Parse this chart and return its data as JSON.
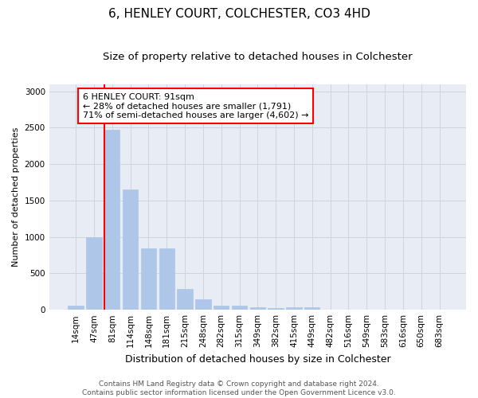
{
  "title": "6, HENLEY COURT, COLCHESTER, CO3 4HD",
  "subtitle": "Size of property relative to detached houses in Colchester",
  "xlabel": "Distribution of detached houses by size in Colchester",
  "ylabel": "Number of detached properties",
  "categories": [
    "14sqm",
    "47sqm",
    "81sqm",
    "114sqm",
    "148sqm",
    "181sqm",
    "215sqm",
    "248sqm",
    "282sqm",
    "315sqm",
    "349sqm",
    "382sqm",
    "415sqm",
    "449sqm",
    "482sqm",
    "516sqm",
    "549sqm",
    "583sqm",
    "616sqm",
    "650sqm",
    "683sqm"
  ],
  "values": [
    55,
    1000,
    2470,
    1650,
    840,
    840,
    290,
    140,
    55,
    55,
    40,
    25,
    30,
    30,
    0,
    0,
    0,
    0,
    0,
    0,
    0
  ],
  "bar_color": "#aec6e8",
  "bar_edgecolor": "#aec6e8",
  "vline_color": "red",
  "vline_index": 2,
  "annotation_text": "6 HENLEY COURT: 91sqm\n← 28% of detached houses are smaller (1,791)\n71% of semi-detached houses are larger (4,602) →",
  "ylim": [
    0,
    3100
  ],
  "yticks": [
    0,
    500,
    1000,
    1500,
    2000,
    2500,
    3000
  ],
  "grid_color": "#cdd5e0",
  "background_color": "#e8edf5",
  "footer_line1": "Contains HM Land Registry data © Crown copyright and database right 2024.",
  "footer_line2": "Contains public sector information licensed under the Open Government Licence v3.0.",
  "title_fontsize": 11,
  "subtitle_fontsize": 9.5,
  "xlabel_fontsize": 9,
  "ylabel_fontsize": 8,
  "tick_fontsize": 7.5,
  "annotation_fontsize": 8,
  "footer_fontsize": 6.5
}
